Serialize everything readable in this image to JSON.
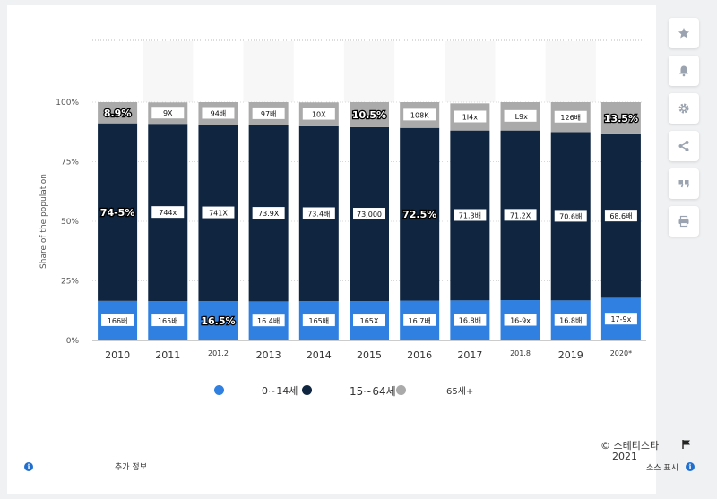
{
  "chart_data": {
    "type": "bar",
    "stacked": true,
    "ylabel": "Share of the population",
    "ylim": [
      0,
      100
    ],
    "yticks": [
      "0%",
      "25%",
      "50%",
      "75%",
      "100%"
    ],
    "categories": [
      "2010",
      "2011",
      "2012",
      "2013",
      "2014",
      "2015",
      "2016",
      "2017",
      "2018",
      "2019",
      "2020*"
    ],
    "category_labels": [
      "2010",
      "2011",
      "201.2",
      "2013",
      "2014",
      "2015",
      "2016",
      "2017",
      "201.8",
      "2019",
      "2020*"
    ],
    "grid": true,
    "legend_position": "bottom",
    "series": [
      {
        "name": "0~14세",
        "color": "#2f80e0",
        "values": [
          16.6,
          16.5,
          16.5,
          16.4,
          16.5,
          16.5,
          16.7,
          16.8,
          16.9,
          16.8,
          17.9
        ],
        "labels": [
          "166배",
          "165배",
          "16.5%",
          "16.4배",
          "165배",
          "165X",
          "16.7배",
          "16.8배",
          "16-9x",
          "16.8배",
          "17-9x"
        ]
      },
      {
        "name": "15~64세",
        "color": "#0f2540",
        "values": [
          74.5,
          74.4,
          74.1,
          73.9,
          73.4,
          73.0,
          72.5,
          71.3,
          71.2,
          70.6,
          68.6
        ],
        "labels": [
          "74-5%",
          "744x",
          "741X",
          "73.9X",
          "73.4배",
          "73,000",
          "72.5%",
          "71.3배",
          "71.2X",
          "70.6배",
          "68.6배"
        ]
      },
      {
        "name": "65세+",
        "color": "#aaaaaa",
        "values": [
          8.9,
          9.0,
          9.4,
          9.7,
          10.0,
          10.5,
          10.8,
          11.4,
          11.9,
          12.6,
          13.5
        ],
        "labels": [
          "8.9%",
          "9X",
          "94배",
          "97배",
          "10X",
          "10.5%",
          "108K",
          "1I4x",
          "IL9x",
          "126배",
          "13.5%"
        ]
      }
    ]
  },
  "legend": [
    "0~14세",
    "15~64세",
    "65세+"
  ],
  "footer": {
    "copyright": "© 스테티스타",
    "year": "2021",
    "more_info": "추가 정보",
    "source": "소스 표시"
  },
  "side_icons": [
    "star-icon",
    "bell-icon",
    "gear-icon",
    "share-icon",
    "quote-icon",
    "print-icon"
  ]
}
